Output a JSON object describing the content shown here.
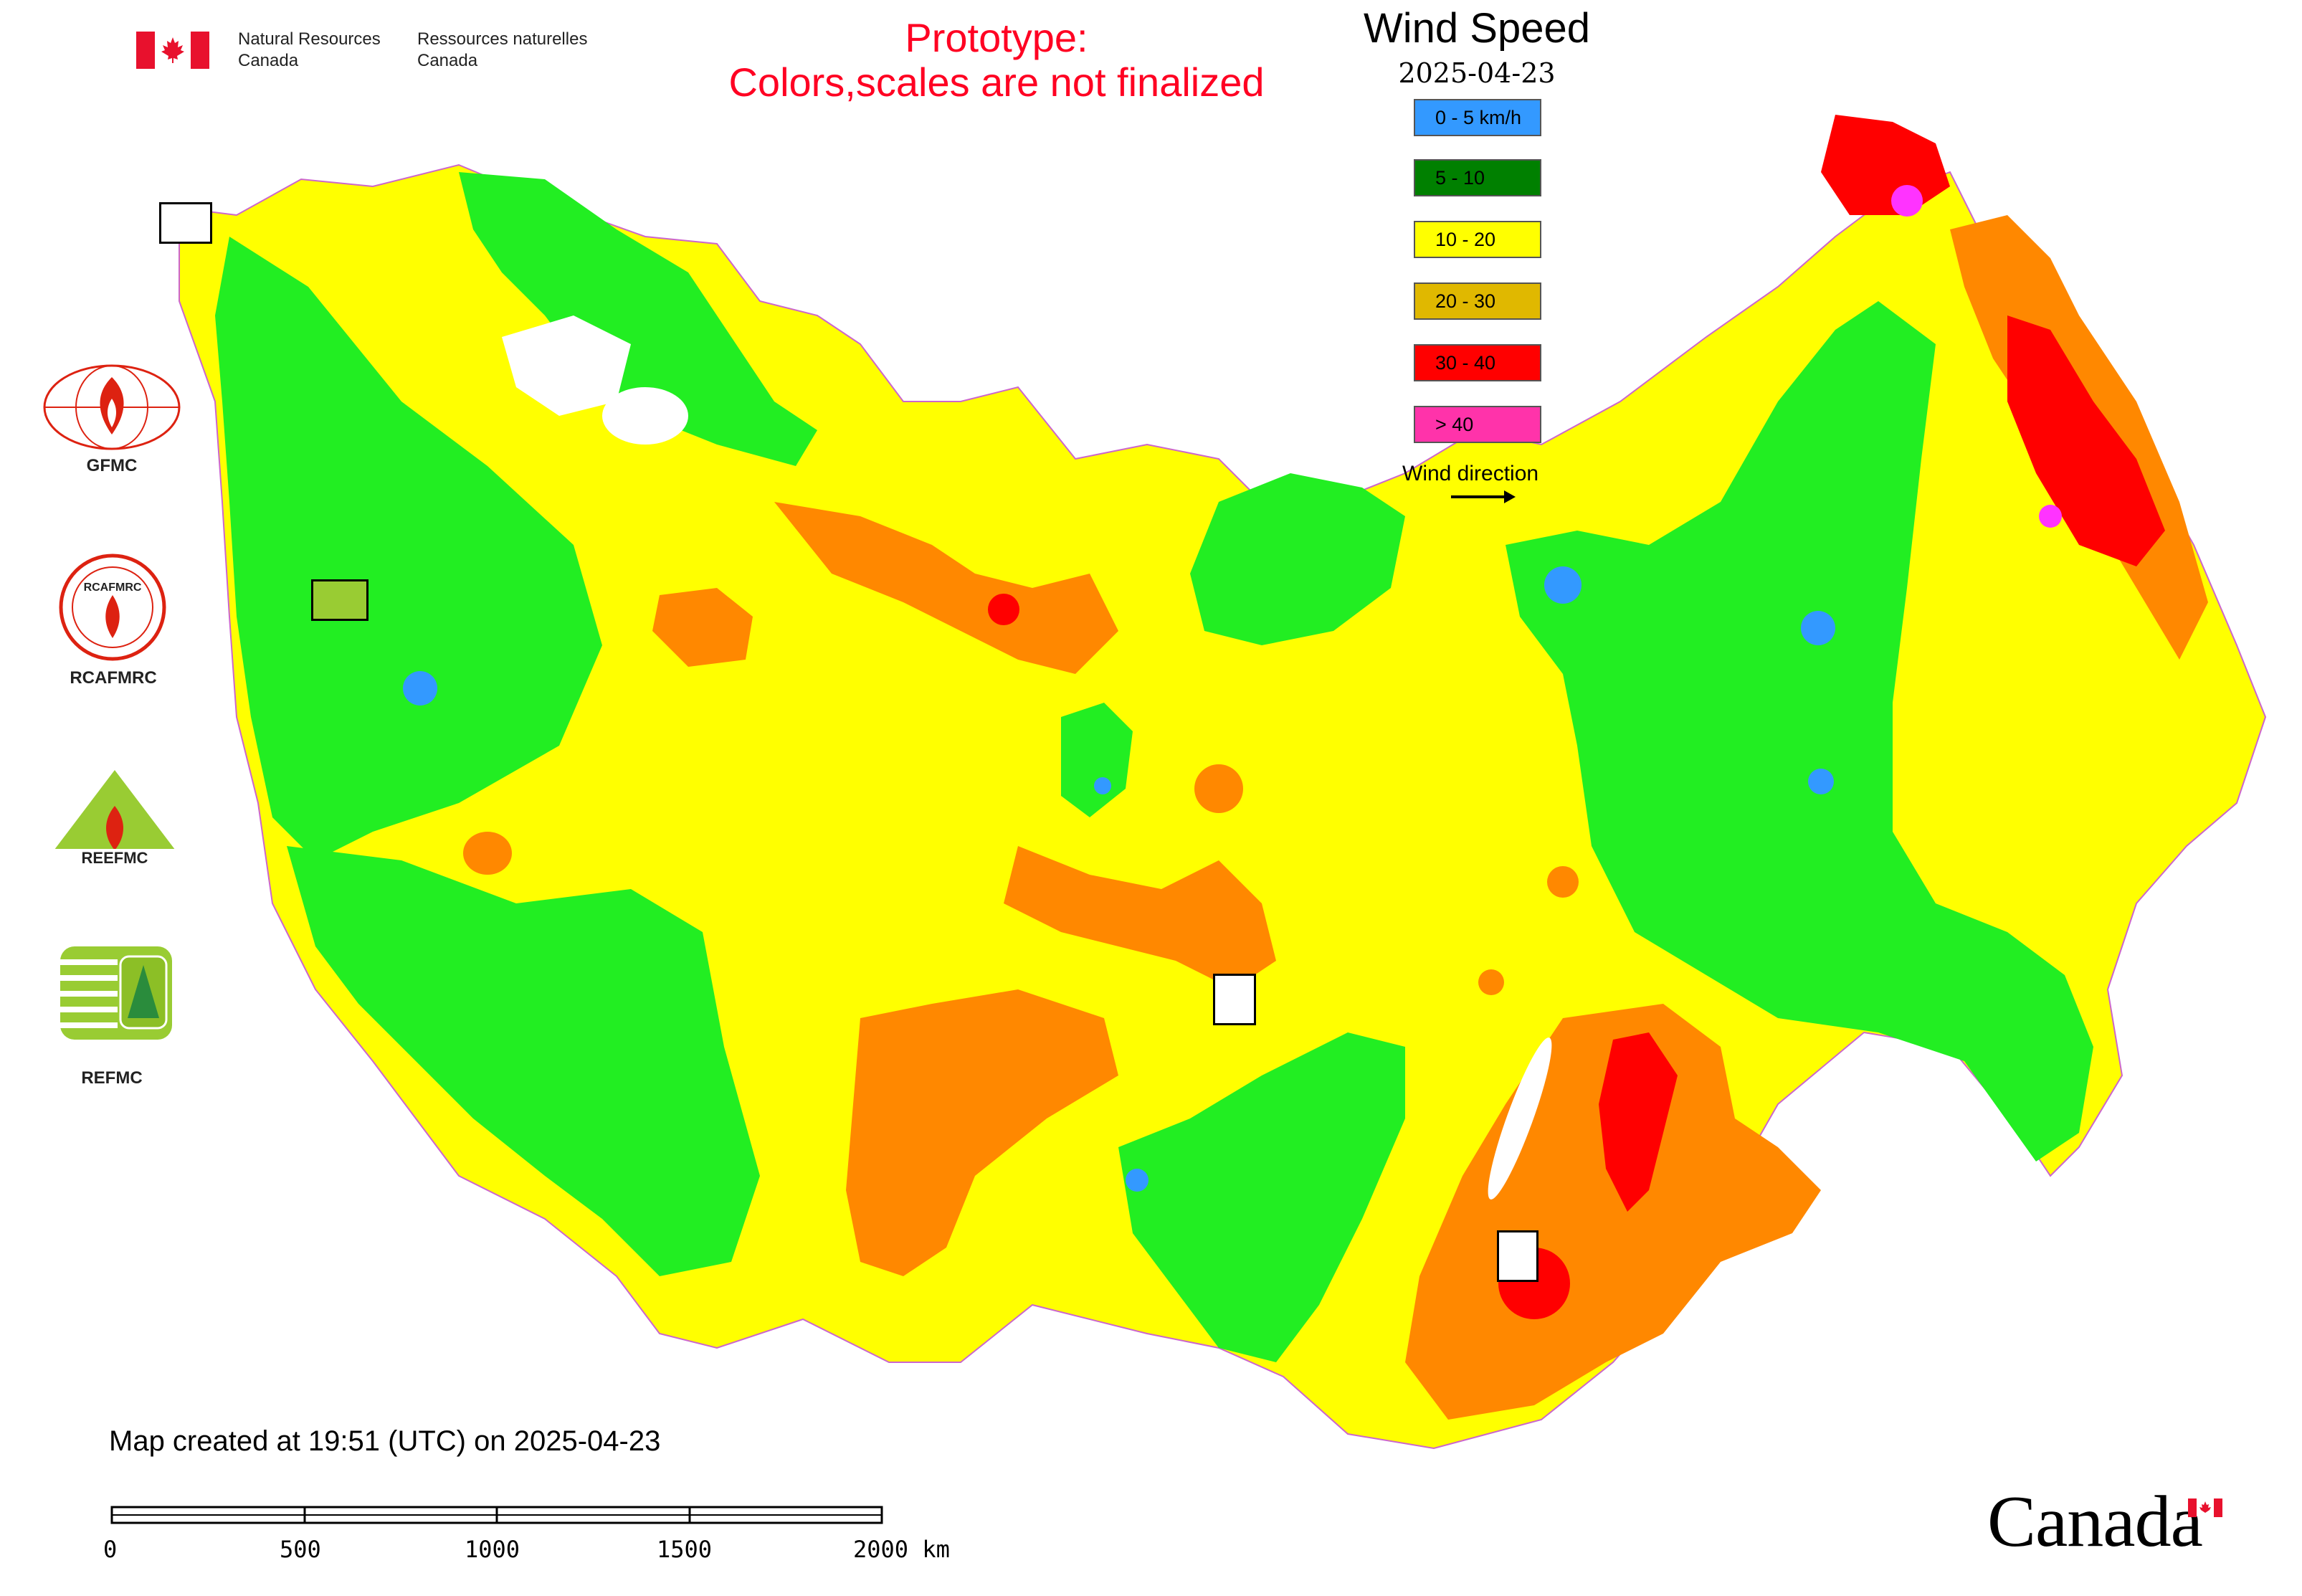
{
  "header": {
    "org_en_line1": "Natural Resources",
    "org_en_line2": "Canada",
    "org_fr_line1": "Ressources naturelles",
    "org_fr_line2": "Canada"
  },
  "notice": {
    "line1": "Prototype:",
    "line2": "Colors,scales are not finalized"
  },
  "legend": {
    "title": "Wind Speed",
    "date": "2025-04-23",
    "items": [
      {
        "label": "0 - 5 km/h",
        "color": "#3399ff"
      },
      {
        "label": "5 - 10",
        "color": "#008000"
      },
      {
        "label": "10 - 20",
        "color": "#ffff00"
      },
      {
        "label": "20 - 30",
        "color": "#e0b800"
      },
      {
        "label": "30 - 40",
        "color": "#ff0000"
      },
      {
        "label": "> 40",
        "color": "#ff33aa"
      }
    ],
    "wind_direction_label": "Wind direction"
  },
  "logos": {
    "gfmc": "GFMC",
    "rcafmrc": "RCAFMRC",
    "reefmc": "REEFMC",
    "refmc": "REFMC"
  },
  "map_colors": {
    "green": "#22ee22",
    "yellow": "#ffff00",
    "orange": "#ff8800",
    "red": "#ff0000",
    "blue": "#3399ff",
    "magenta": "#ff33ff",
    "border": "#cc66cc"
  },
  "footer": {
    "created": "Map created at 19:51 (UTC) on 2025-04-23",
    "scale_ticks": [
      "0",
      "500",
      "1000",
      "1500",
      "2000 km"
    ],
    "wordmark": "Canada"
  }
}
